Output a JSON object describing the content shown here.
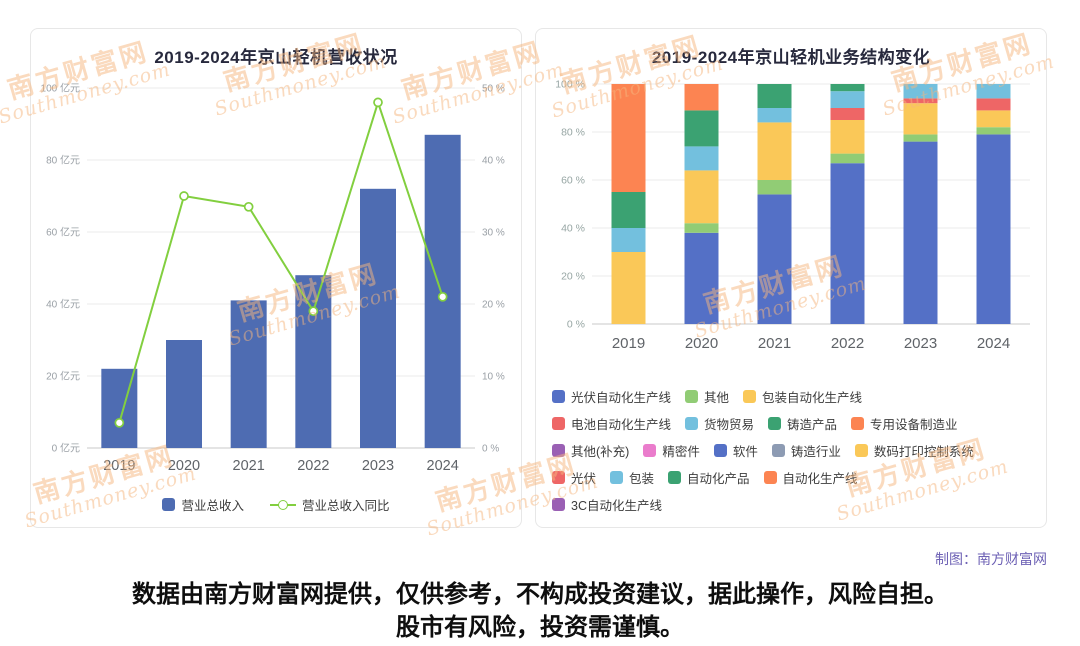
{
  "watermark": {
    "cn": "南方财富网",
    "en": "Southmoney.com"
  },
  "credit": "制图：南方财富网",
  "disclaimer": {
    "line1": "数据由南方财富网提供，仅供参考，不构成投资建议，据此操作，风险自担。",
    "line2": "股市有风险，投资需谨慎。"
  },
  "chart_data": [
    {
      "type": "bar",
      "title": "2019-2024年京山轻机营收状况",
      "categories": [
        "2019",
        "2020",
        "2021",
        "2022",
        "2023",
        "2024"
      ],
      "series": [
        {
          "name": "营业总收入",
          "type": "bar",
          "unit": "亿元",
          "color": "#4e6cb2",
          "axis": "left",
          "values": [
            22,
            30,
            41,
            48,
            72,
            87
          ]
        },
        {
          "name": "营业总收入同比",
          "type": "line",
          "unit": "%",
          "color": "#82cf3f",
          "axis": "right",
          "values": [
            3.5,
            35,
            33.5,
            19,
            48,
            21
          ]
        }
      ],
      "left_axis": {
        "min": 0,
        "max": 100,
        "unit": "亿元",
        "ticks": [
          "0 亿元",
          "20 亿元",
          "40 亿元",
          "60 亿元",
          "80 亿元",
          "100 亿元"
        ]
      },
      "right_axis": {
        "min": 0,
        "max": 50,
        "unit": "%",
        "ticks": [
          "0 %",
          "10 %",
          "20 %",
          "30 %",
          "40 %",
          "50 %"
        ]
      },
      "grid": true,
      "legend_position": "bottom"
    },
    {
      "type": "stacked-bar-percent",
      "title": "2019-2024年京山轻机业务结构变化",
      "categories": [
        "2019",
        "2020",
        "2021",
        "2022",
        "2023",
        "2024"
      ],
      "y_axis": {
        "min": 0,
        "max": 100,
        "unit": "%",
        "ticks": [
          "0 %",
          "20 %",
          "40 %",
          "60 %",
          "80 %",
          "100 %"
        ]
      },
      "series": [
        {
          "name": "光伏自动化生产线",
          "color": "#5470c6",
          "values": [
            0,
            38,
            54,
            67,
            76,
            79
          ]
        },
        {
          "name": "其他",
          "color": "#91cc75",
          "values": [
            0,
            4,
            6,
            4,
            3,
            3
          ]
        },
        {
          "name": "包装自动化生产线",
          "color": "#fac858",
          "values": [
            30,
            22,
            24,
            14,
            13,
            7
          ]
        },
        {
          "name": "电池自动化生产线",
          "color": "#ee6666",
          "values": [
            0,
            0,
            0,
            5,
            2,
            5
          ]
        },
        {
          "name": "货物贸易",
          "color": "#73c0de",
          "values": [
            10,
            10,
            6,
            7,
            6,
            6
          ]
        },
        {
          "name": "铸造产品",
          "color": "#3ba272",
          "values": [
            15,
            15,
            10,
            3,
            0,
            0
          ]
        },
        {
          "name": "专用设备制造业",
          "color": "#fc8452",
          "values": [
            45,
            11,
            0,
            0,
            0,
            0
          ]
        }
      ],
      "legend": [
        {
          "label": "光伏自动化生产线",
          "color": "#5470c6"
        },
        {
          "label": "其他",
          "color": "#91cc75"
        },
        {
          "label": "包装自动化生产线",
          "color": "#fac858"
        },
        {
          "label": "电池自动化生产线",
          "color": "#ee6666"
        },
        {
          "label": "货物贸易",
          "color": "#73c0de"
        },
        {
          "label": "铸造产品",
          "color": "#3ba272"
        },
        {
          "label": "专用设备制造业",
          "color": "#fc8452"
        },
        {
          "label": "其他(补充)",
          "color": "#9a60b4"
        },
        {
          "label": "精密件",
          "color": "#ea7ccc"
        },
        {
          "label": "软件",
          "color": "#5470c6"
        },
        {
          "label": "铸造行业",
          "color": "#8d9bb3"
        },
        {
          "label": "数码打印控制系统",
          "color": "#fac858"
        },
        {
          "label": "光伏",
          "color": "#ee6666"
        },
        {
          "label": "包装",
          "color": "#73c0de"
        },
        {
          "label": "自动化产品",
          "color": "#3ba272"
        },
        {
          "label": "自动化生产线",
          "color": "#fc8452"
        },
        {
          "label": "3C自动化生产线",
          "color": "#9a60b4"
        }
      ],
      "legend_rows": [
        [
          0,
          1,
          2
        ],
        [
          3,
          4,
          5,
          6
        ],
        [
          7,
          8,
          9,
          10,
          11
        ],
        [
          12,
          13,
          14,
          15
        ],
        [
          16
        ]
      ],
      "grid": true,
      "legend_position": "bottom"
    }
  ]
}
